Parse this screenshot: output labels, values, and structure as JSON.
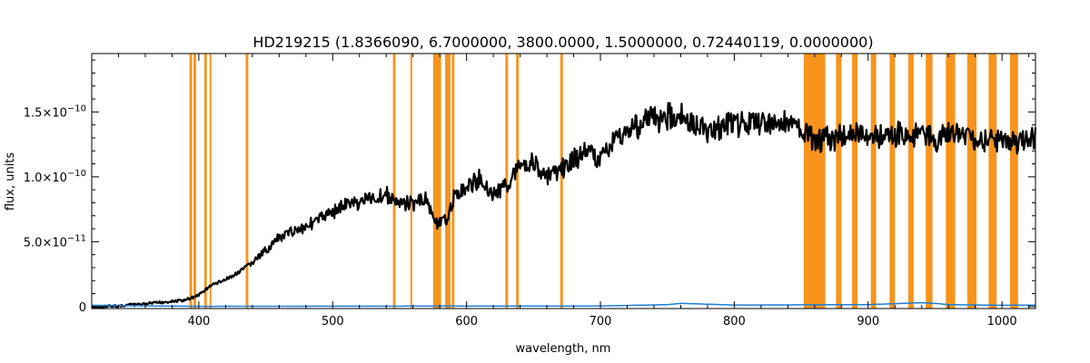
{
  "chart_data": {
    "type": "line",
    "title": "HD219215   (1.8366090, 6.7000000, 3800.0000, 1.5000000, 0.72440119, 0.0000000)",
    "xlabel": "wavelength, nm",
    "ylabel": "flux, units",
    "xlim": [
      320,
      1025
    ],
    "ylim": [
      -1.5e-12,
      1.95e-10
    ],
    "x_ticks": [
      400,
      500,
      600,
      700,
      800,
      900,
      1000
    ],
    "x_tick_labels": [
      "400",
      "500",
      "600",
      "700",
      "800",
      "900",
      "1000"
    ],
    "y_ticks": [
      {
        "value": 0,
        "base": "0",
        "exp": ""
      },
      {
        "value": 5e-11,
        "base": "5.0×10",
        "exp": "−11"
      },
      {
        "value": 1e-10,
        "base": "1.0×10",
        "exp": "−10"
      },
      {
        "value": 1.5e-10,
        "base": "1.5×10",
        "exp": "−10"
      }
    ],
    "series": [
      {
        "color": "#000000",
        "x": [
          320,
          340,
          360,
          380,
          390,
          400,
          410,
          420,
          430,
          440,
          450,
          460,
          470,
          480,
          490,
          500,
          510,
          520,
          530,
          540,
          550,
          560,
          570,
          575,
          580,
          585,
          590,
          600,
          610,
          620,
          630,
          640,
          650,
          660,
          670,
          680,
          690,
          700,
          710,
          720,
          730,
          740,
          750,
          760,
          770,
          780,
          790,
          800,
          810,
          820,
          830,
          840,
          850,
          860,
          870,
          880,
          890,
          900,
          910,
          920,
          930,
          940,
          950,
          960,
          970,
          980,
          990,
          1000,
          1010,
          1025
        ],
        "y": [
          3e-13,
          1.5e-12,
          3e-12,
          5e-12,
          6e-12,
          1e-11,
          1.8e-11,
          2.2e-11,
          2.8e-11,
          3.6e-11,
          4.6e-11,
          5.6e-11,
          6.2e-11,
          6.6e-11,
          7.2e-11,
          7.8e-11,
          8.4e-11,
          8.6e-11,
          8.9e-11,
          9.2e-11,
          8.4e-11,
          8.5e-11,
          8.8e-11,
          7.2e-11,
          6.8e-11,
          7.2e-11,
          8.8e-11,
          9.8e-11,
          1.05e-10,
          9.2e-11,
          1e-10,
          1.18e-10,
          1.18e-10,
          1.05e-10,
          1.12e-10,
          1.2e-10,
          1.28e-10,
          1.22e-10,
          1.35e-10,
          1.45e-10,
          1.5e-10,
          1.55e-10,
          1.56e-10,
          1.58e-10,
          1.48e-10,
          1.45e-10,
          1.48e-10,
          1.5e-10,
          1.5e-10,
          1.52e-10,
          1.5e-10,
          1.5e-10,
          1.45e-10,
          1.35e-10,
          1.38e-10,
          1.4e-10,
          1.42e-10,
          1.42e-10,
          1.38e-10,
          1.42e-10,
          1.38e-10,
          1.42e-10,
          1.35e-10,
          1.42e-10,
          1.4e-10,
          1.38e-10,
          1.35e-10,
          1.38e-10,
          1.35e-10,
          1.38e-10
        ]
      },
      {
        "color": "#1e7fd8",
        "x": [
          320,
          400,
          500,
          600,
          700,
          750,
          760,
          800,
          900,
          940,
          950,
          960,
          1000,
          1025
        ],
        "y": [
          1e-12,
          2e-13,
          3e-13,
          4e-13,
          5e-13,
          1.5e-12,
          2.5e-12,
          1.2e-12,
          1.5e-12,
          3e-12,
          2.5e-12,
          1.5e-12,
          1e-12,
          1.2e-12
        ]
      }
    ],
    "masked_bands_nm": [
      [
        393,
        395
      ],
      [
        396,
        398
      ],
      [
        404,
        406
      ],
      [
        408,
        409
      ],
      [
        435,
        437
      ],
      [
        545,
        547
      ],
      [
        558,
        559
      ],
      [
        575,
        581
      ],
      [
        584,
        588
      ],
      [
        589,
        591
      ],
      [
        629,
        631
      ],
      [
        637,
        639
      ],
      [
        670,
        672
      ],
      [
        852,
        868
      ],
      [
        876,
        880
      ],
      [
        888,
        892
      ],
      [
        902,
        906
      ],
      [
        916,
        920
      ],
      [
        930,
        934
      ],
      [
        943,
        948
      ],
      [
        958,
        965
      ],
      [
        974,
        981
      ],
      [
        990,
        996
      ],
      [
        1006,
        1012
      ]
    ],
    "band_color": "#f7941d"
  }
}
